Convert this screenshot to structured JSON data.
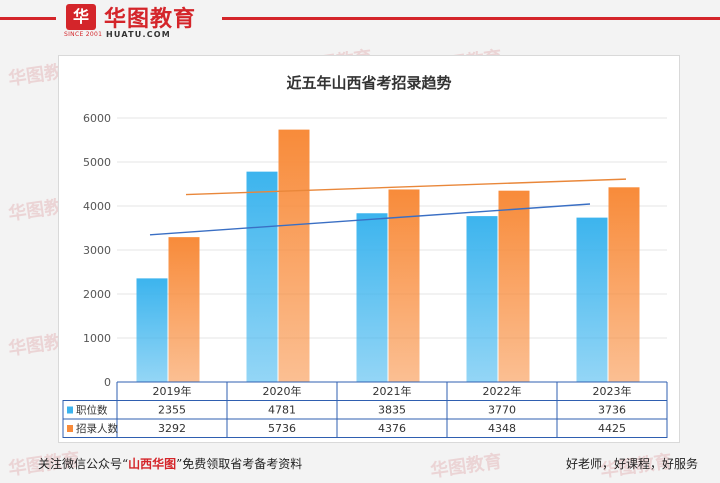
{
  "brand": {
    "badge_text": "华",
    "name_cn": "华图教育",
    "since": "SINCE 2001",
    "url": "HUATU.COM",
    "color": "#d4252a"
  },
  "chart_data": {
    "type": "bar",
    "title": "近五年山西省考招录趋势",
    "categories": [
      "2019年",
      "2020年",
      "2021年",
      "2022年",
      "2023年"
    ],
    "ylim": [
      0,
      6000
    ],
    "yticks": [
      0,
      1000,
      2000,
      3000,
      4000,
      5000,
      6000
    ],
    "grid": true,
    "legend": "table-bottom",
    "series": [
      {
        "name": "职位数",
        "values": [
          2355,
          4781,
          3835,
          3770,
          3736
        ],
        "color": "#3cb4ee",
        "trendline": "linear"
      },
      {
        "name": "招录人数",
        "values": [
          3292,
          5736,
          4376,
          4348,
          4425
        ],
        "color": "#f88b3a",
        "trendline": "linear"
      }
    ],
    "data_table": true
  },
  "watermark_text": "华图教育",
  "footer": {
    "left_prefix": "关注微信公众号“",
    "left_highlight": "山西华图",
    "left_suffix": "”免费领取省考备考资料",
    "right": "好老师，好课程，好服务"
  }
}
